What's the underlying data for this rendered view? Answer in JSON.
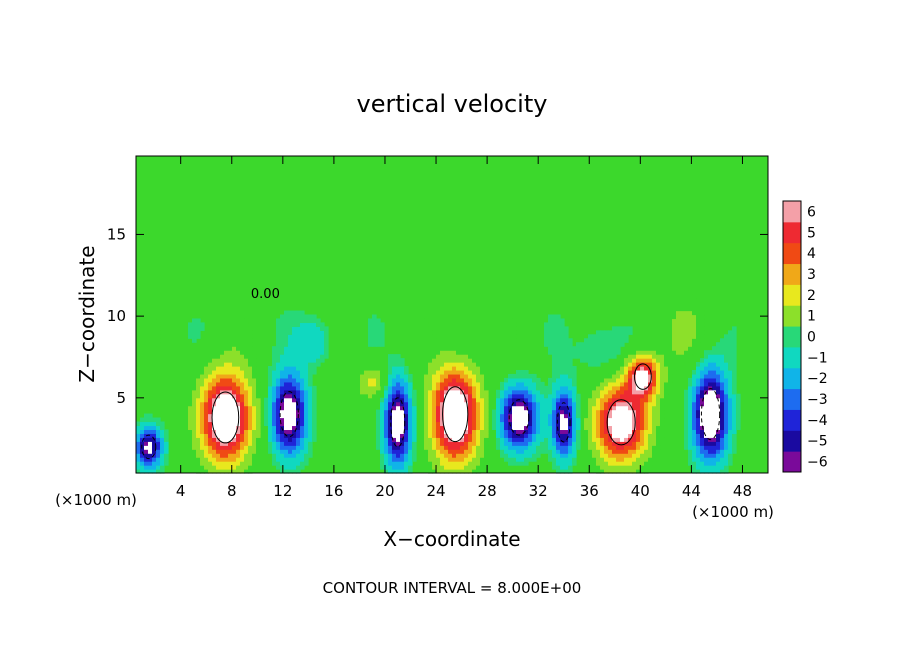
{
  "chart_data": {
    "type": "heatmap",
    "title": "vertical velocity",
    "xlabel": "X−coordinate",
    "ylabel": "Z−coordinate",
    "x_unit_left": "(×1000 m)",
    "x_unit_right": "(×1000 m)",
    "xlim": [
      0.5,
      50
    ],
    "ylim": [
      0.4,
      19.8
    ],
    "x_ticks": [
      4,
      8,
      12,
      16,
      20,
      24,
      28,
      32,
      36,
      40,
      44,
      48
    ],
    "y_ticks": [
      5,
      10,
      15
    ],
    "contour_label": "0.00",
    "contour_label_pos": [
      9.5,
      11.1
    ],
    "contour_interval_text": "CONTOUR INTERVAL = 8.000E+00",
    "colorbar": {
      "ticks": [
        6,
        5,
        4,
        3,
        2,
        1,
        0,
        -1,
        -2,
        -3,
        -4,
        -5,
        -6
      ],
      "vmin": -6.5,
      "vmax": 6.5,
      "colors": [
        {
          "v": -6.5,
          "c": "#7a0a9a"
        },
        {
          "v": -5.5,
          "c": "#1a0aa0"
        },
        {
          "v": -4.5,
          "c": "#1f24d8"
        },
        {
          "v": -3.5,
          "c": "#1d6cf0"
        },
        {
          "v": -2.5,
          "c": "#10b4e8"
        },
        {
          "v": -1.5,
          "c": "#10d8c0"
        },
        {
          "v": -0.5,
          "c": "#28d878"
        },
        {
          "v": 0.5,
          "c": "#3cd82c"
        },
        {
          "v": 1.5,
          "c": "#8ce02a"
        },
        {
          "v": 2.5,
          "c": "#e8e81e"
        },
        {
          "v": 3.5,
          "c": "#f0a818"
        },
        {
          "v": 4.5,
          "c": "#f04a14"
        },
        {
          "v": 5.5,
          "c": "#ee2a32"
        },
        {
          "v": 6.5,
          "c": "#f4a0a8"
        }
      ]
    },
    "updrafts": [
      {
        "x": 7.5,
        "z": 3.8,
        "sx": 1.9,
        "sz": 2.6,
        "amp": 9
      },
      {
        "x": 25.5,
        "z": 4.0,
        "sx": 1.8,
        "sz": 2.8,
        "amp": 9
      },
      {
        "x": 38.5,
        "z": 3.5,
        "sx": 2.0,
        "sz": 2.3,
        "amp": 8
      },
      {
        "x": 40.2,
        "z": 6.3,
        "sx": 1.2,
        "sz": 1.3,
        "amp": 7
      }
    ],
    "downdrafts": [
      {
        "x": 1.5,
        "z": 2.0,
        "sx": 1.0,
        "sz": 1.2,
        "amp": -7
      },
      {
        "x": 12.5,
        "z": 4.0,
        "sx": 1.3,
        "sz": 2.3,
        "amp": -8
      },
      {
        "x": 21.0,
        "z": 3.5,
        "sx": 1.0,
        "sz": 2.5,
        "amp": -8
      },
      {
        "x": 30.5,
        "z": 3.8,
        "sx": 1.4,
        "sz": 1.8,
        "amp": -8
      },
      {
        "x": 34.0,
        "z": 3.5,
        "sx": 0.9,
        "sz": 2.0,
        "amp": -7
      },
      {
        "x": 45.5,
        "z": 4.0,
        "sx": 1.3,
        "sz": 2.6,
        "amp": -9
      }
    ],
    "weak_features": [
      {
        "x": 19.0,
        "z": 6.0,
        "sx": 1.2,
        "sz": 1.0,
        "amp": 2.5
      },
      {
        "x": 14.5,
        "z": 8.5,
        "sx": 1.5,
        "sz": 1.5,
        "amp": -2
      },
      {
        "x": 37.0,
        "z": 8.0,
        "sx": 2.0,
        "sz": 2.0,
        "amp": -1.5
      },
      {
        "x": 43.0,
        "z": 9.0,
        "sx": 3.0,
        "sz": 2.5,
        "amp": 0.8
      }
    ]
  }
}
